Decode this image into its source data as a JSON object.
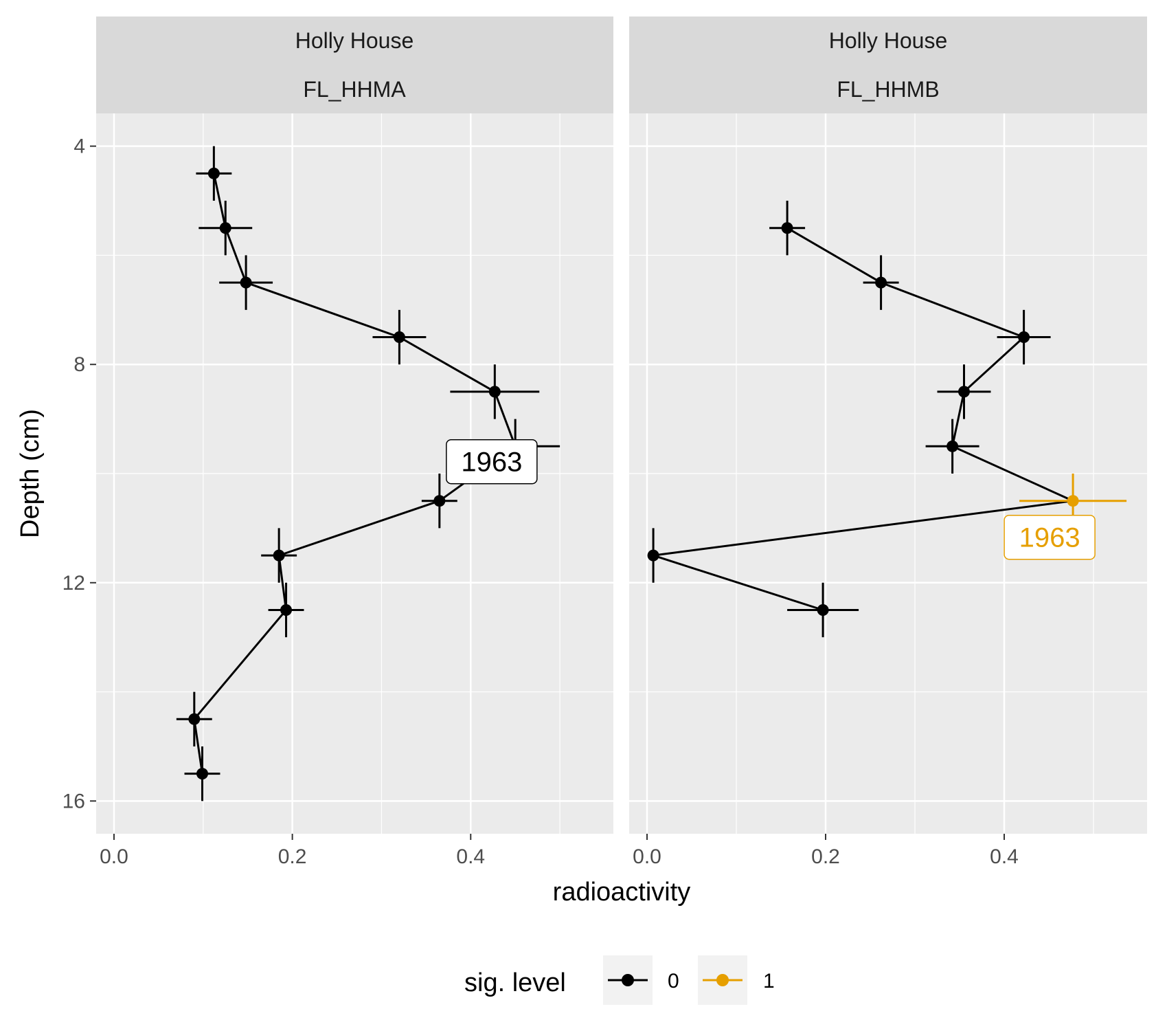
{
  "chart_data": {
    "type": "scatter",
    "xlabel": "radioactivity",
    "ylabel": "Depth (cm)",
    "xlim": [
      -0.02,
      0.56
    ],
    "ylim": [
      3.4,
      16.6
    ],
    "y_reversed": true,
    "x_ticks": [
      "0.0",
      "0.2",
      "0.4"
    ],
    "y_ticks": [
      "4",
      "8",
      "12",
      "16"
    ],
    "grid": true,
    "legend": {
      "title": "sig. level",
      "position": "bottom",
      "entries": [
        {
          "label": "0",
          "color": "#000000"
        },
        {
          "label": "1",
          "color": "#E69F00"
        }
      ]
    },
    "panels": [
      {
        "strip_top": "Holly House",
        "strip_bottom": "FL_HHMA",
        "points": [
          {
            "depth": 4.5,
            "x": 0.112,
            "x_err": 0.02,
            "depth_err": 0.5,
            "sig": 0
          },
          {
            "depth": 5.5,
            "x": 0.125,
            "x_err": 0.03,
            "depth_err": 0.5,
            "sig": 0
          },
          {
            "depth": 6.5,
            "x": 0.148,
            "x_err": 0.03,
            "depth_err": 0.5,
            "sig": 0
          },
          {
            "depth": 7.5,
            "x": 0.32,
            "x_err": 0.03,
            "depth_err": 0.5,
            "sig": 0
          },
          {
            "depth": 8.5,
            "x": 0.427,
            "x_err": 0.05,
            "depth_err": 0.5,
            "sig": 0
          },
          {
            "depth": 9.5,
            "x": 0.45,
            "x_err": 0.05,
            "depth_err": 0.5,
            "sig": 0
          },
          {
            "depth": 10.5,
            "x": 0.365,
            "x_err": 0.02,
            "depth_err": 0.5,
            "sig": 0
          },
          {
            "depth": 11.5,
            "x": 0.185,
            "x_err": 0.02,
            "depth_err": 0.5,
            "sig": 0
          },
          {
            "depth": 12.5,
            "x": 0.193,
            "x_err": 0.02,
            "depth_err": 0.5,
            "sig": 0
          },
          {
            "depth": 14.5,
            "x": 0.09,
            "x_err": 0.02,
            "depth_err": 0.5,
            "sig": 0
          },
          {
            "depth": 15.5,
            "x": 0.099,
            "x_err": 0.02,
            "depth_err": 0.5,
            "sig": 0
          }
        ],
        "annotation": {
          "text": "1963",
          "depth": 10.5,
          "x": 0.365,
          "sig": 0
        }
      },
      {
        "strip_top": "Holly House",
        "strip_bottom": "FL_HHMB",
        "points": [
          {
            "depth": 5.5,
            "x": 0.157,
            "x_err": 0.02,
            "depth_err": 0.5,
            "sig": 0
          },
          {
            "depth": 6.5,
            "x": 0.262,
            "x_err": 0.02,
            "depth_err": 0.5,
            "sig": 0
          },
          {
            "depth": 7.5,
            "x": 0.422,
            "x_err": 0.03,
            "depth_err": 0.5,
            "sig": 0
          },
          {
            "depth": 8.5,
            "x": 0.355,
            "x_err": 0.03,
            "depth_err": 0.5,
            "sig": 0
          },
          {
            "depth": 9.5,
            "x": 0.342,
            "x_err": 0.03,
            "depth_err": 0.5,
            "sig": 0
          },
          {
            "depth": 10.5,
            "x": 0.477,
            "x_err": 0.06,
            "depth_err": 0.5,
            "sig": 1
          },
          {
            "depth": 11.5,
            "x": 0.007,
            "x_err": 0.0,
            "depth_err": 0.5,
            "sig": 0
          },
          {
            "depth": 12.5,
            "x": 0.197,
            "x_err": 0.04,
            "depth_err": 0.5,
            "sig": 0
          }
        ],
        "annotation": {
          "text": "1963",
          "depth": 10.5,
          "x": 0.477,
          "sig": 1
        }
      }
    ]
  }
}
